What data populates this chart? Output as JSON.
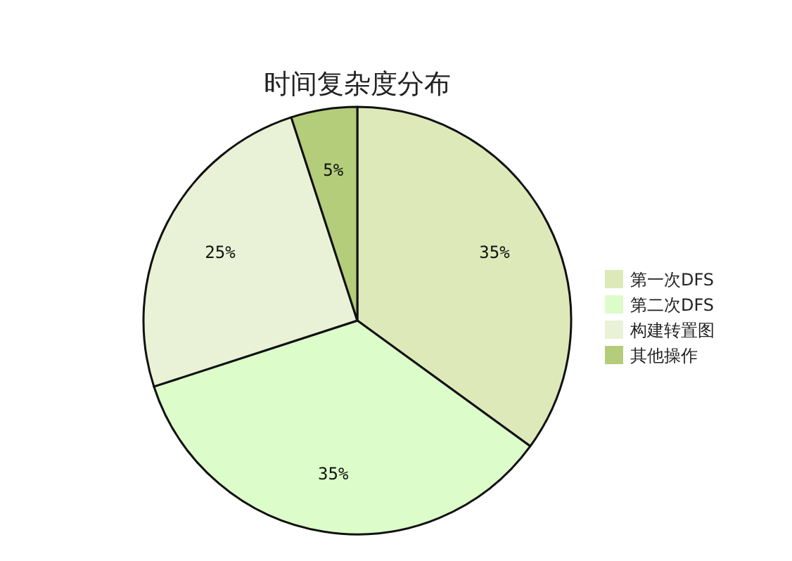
{
  "chart_data": {
    "type": "pie",
    "title": "时间复杂度分布",
    "categories": [
      "第一次DFS",
      "第二次DFS",
      "构建转置图",
      "其他操作"
    ],
    "values": [
      35,
      35,
      25,
      5
    ],
    "colors": [
      "#dde9b9",
      "#dcfdc9",
      "#e9f2d6",
      "#b4cd7b"
    ],
    "value_labels": [
      "35%",
      "35%",
      "25%",
      "5%"
    ],
    "legend": "right"
  }
}
